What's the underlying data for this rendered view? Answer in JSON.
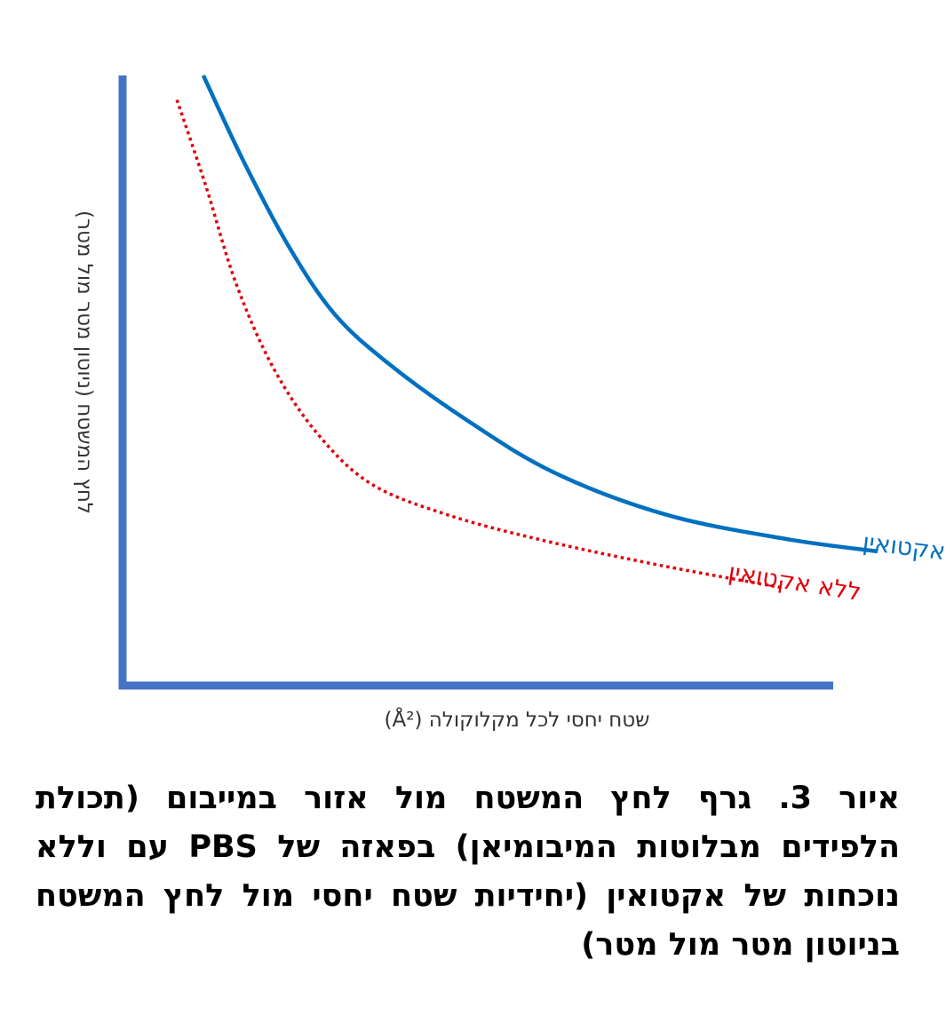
{
  "chart_data": {
    "type": "line",
    "xlabel": "שטח יחסי לכל מקלוקולה (Å²)",
    "ylabel": "לחץ המשטח (ניוטון מטר מול מטר)",
    "grid": false,
    "legend": "labels next to curves (right side)",
    "series": [
      {
        "name": "עם אקטואין",
        "color": "#0070c0",
        "style": "solid",
        "points": [
          [
            0.107,
            1.0
          ],
          [
            0.16,
            0.86
          ],
          [
            0.22,
            0.72
          ],
          [
            0.28,
            0.61
          ],
          [
            0.35,
            0.53
          ],
          [
            0.45,
            0.44
          ],
          [
            0.57,
            0.35
          ],
          [
            0.72,
            0.28
          ],
          [
            0.88,
            0.24
          ],
          [
            1.0,
            0.22
          ]
        ]
      },
      {
        "name": "ללא אקטואין",
        "color": "#e0000b",
        "style": "dotted",
        "points": [
          [
            0.072,
            0.96
          ],
          [
            0.11,
            0.82
          ],
          [
            0.15,
            0.66
          ],
          [
            0.2,
            0.52
          ],
          [
            0.26,
            0.41
          ],
          [
            0.33,
            0.33
          ],
          [
            0.43,
            0.28
          ],
          [
            0.55,
            0.24
          ],
          [
            0.7,
            0.2
          ],
          [
            0.875,
            0.16
          ]
        ]
      }
    ]
  },
  "caption": {
    "text": "איור 3. גרף לחץ המשטח מול אזור במייבום (תכולת הלפידים מבלוטות המיבומיאן) בפאזה של PBS עם וללא נוכחות של אקטואין (יחידיות שטח יחסי מול לחץ המשטח בניוטון מטר מול מטר)"
  },
  "colors": {
    "axis": "#4472c4",
    "with_ectoine": "#0070c0",
    "without_ectoine": "#e0000b"
  }
}
